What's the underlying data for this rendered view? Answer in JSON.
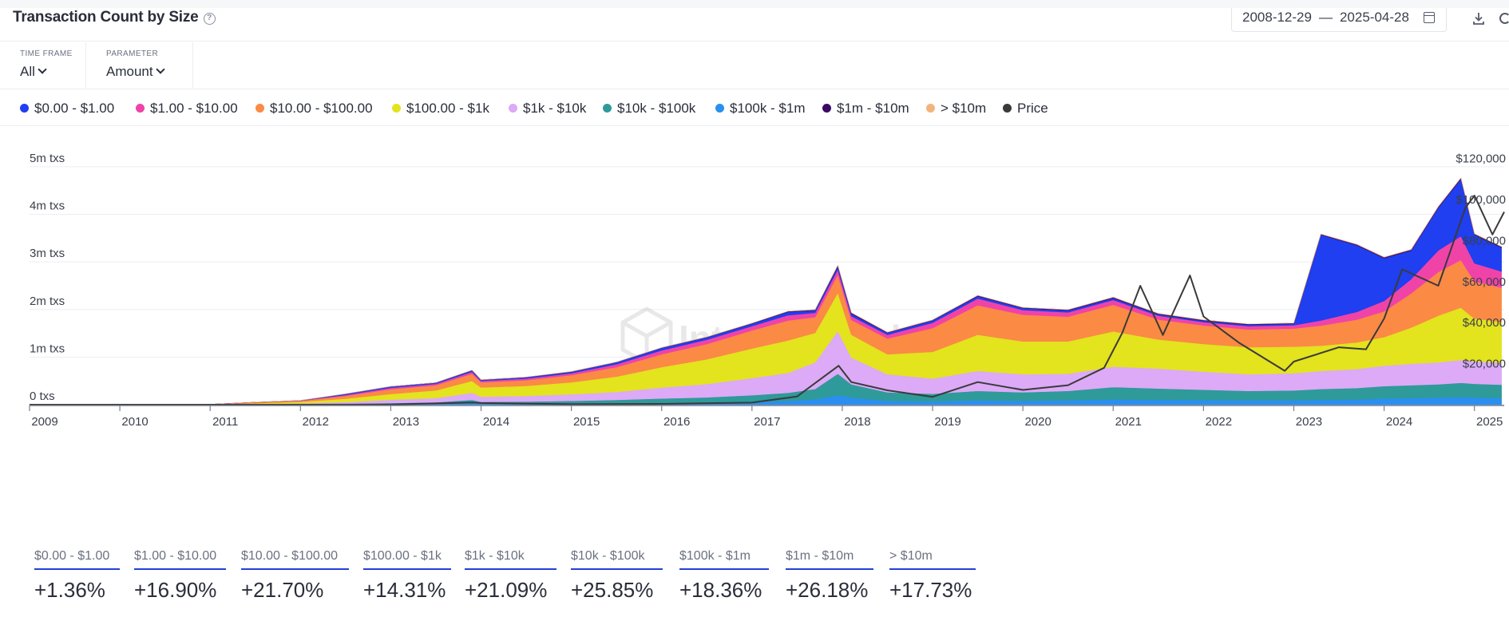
{
  "header": {
    "title": "Transaction Count by Size",
    "date_start": "2008-12-29",
    "date_end": "2025-04-28"
  },
  "filters": [
    {
      "label": "TIME FRAME",
      "value": "All"
    },
    {
      "label": "PARAMETER",
      "value": "Amount"
    }
  ],
  "legend": [
    {
      "label": "$0.00 - $1.00",
      "color": "#1f3ff0"
    },
    {
      "label": "$1.00 - $10.00",
      "color": "#f043a8"
    },
    {
      "label": "$10.00 - $100.00",
      "color": "#fb8a45"
    },
    {
      "label": "$100.00 - $1k",
      "color": "#e3e31e"
    },
    {
      "label": "$1k - $10k",
      "color": "#dcaaf7"
    },
    {
      "label": "$10k - $100k",
      "color": "#2f9a9a"
    },
    {
      "label": "$100k - $1m",
      "color": "#2a8ff0"
    },
    {
      "label": "$1m - $10m",
      "color": "#3b0a66"
    },
    {
      "label": "> $10m",
      "color": "#f2b47a"
    },
    {
      "label": "Price",
      "color": "#3a3a3a"
    }
  ],
  "watermark": "IntoTheBlock",
  "chart_data": {
    "type": "area",
    "stacked": true,
    "x": [
      2009,
      2010,
      2011,
      2011.5,
      2012,
      2012.5,
      2013,
      2013.5,
      2013.9,
      2014,
      2014.5,
      2015,
      2015.5,
      2016,
      2016.5,
      2017,
      2017.4,
      2017.7,
      2017.95,
      2018.1,
      2018.5,
      2019,
      2019.5,
      2020,
      2020.5,
      2021,
      2021.5,
      2022,
      2022.5,
      2023,
      2023.3,
      2023.7,
      2024,
      2024.3,
      2024.6,
      2024.85,
      2025,
      2025.3
    ],
    "xlim": [
      2009,
      2025.33
    ],
    "ylim": [
      0,
      5300000
    ],
    "y_ticks": [
      "0 txs",
      "1m txs",
      "2m txs",
      "3m txs",
      "4m txs",
      "5m txs"
    ],
    "y_tick_values": [
      0,
      1000000,
      2000000,
      3000000,
      4000000,
      5000000
    ],
    "x_ticks": [
      "2009",
      "2010",
      "2011",
      "2012",
      "2013",
      "2014",
      "2015",
      "2016",
      "2017",
      "2018",
      "2019",
      "2020",
      "2021",
      "2022",
      "2023",
      "2024",
      "2025"
    ],
    "x_tick_values": [
      2009,
      2010,
      2011,
      2012,
      2013,
      2014,
      2015,
      2016,
      2017,
      2018,
      2019,
      2020,
      2021,
      2022,
      2023,
      2024,
      2025
    ],
    "y2_ticks": [
      "$20,000",
      "$40,000",
      "$60,000",
      "$80,000",
      "$100,000",
      "$120,000"
    ],
    "y2_tick_values": [
      20000,
      40000,
      60000,
      80000,
      100000,
      120000
    ],
    "y2lim": [
      0,
      123000
    ],
    "series": [
      {
        "name": "$100k - $1m",
        "color": "#2a8ff0",
        "values": [
          0,
          0,
          0,
          0,
          2000,
          5000,
          10000,
          15000,
          40000,
          20000,
          20000,
          25000,
          30000,
          40000,
          45000,
          60000,
          80000,
          110000,
          200000,
          150000,
          80000,
          70000,
          90000,
          80000,
          90000,
          110000,
          100000,
          95000,
          90000,
          90000,
          100000,
          110000,
          130000,
          140000,
          150000,
          160000,
          150000,
          140000
        ]
      },
      {
        "name": "$10k - $100k",
        "color": "#2f9a9a",
        "values": [
          0,
          0,
          0,
          2000,
          8000,
          15000,
          25000,
          35000,
          60000,
          40000,
          45000,
          55000,
          70000,
          90000,
          110000,
          140000,
          170000,
          220000,
          450000,
          280000,
          180000,
          160000,
          200000,
          180000,
          200000,
          260000,
          240000,
          220000,
          200000,
          210000,
          230000,
          240000,
          260000,
          270000,
          280000,
          300000,
          290000,
          280000
        ]
      },
      {
        "name": "$1k - $10k",
        "color": "#dcaaf7",
        "values": [
          0,
          0,
          2000,
          10000,
          20000,
          35000,
          70000,
          90000,
          150000,
          110000,
          120000,
          140000,
          170000,
          230000,
          280000,
          360000,
          420000,
          560000,
          900000,
          560000,
          380000,
          320000,
          420000,
          380000,
          360000,
          430000,
          420000,
          380000,
          350000,
          360000,
          380000,
          400000,
          430000,
          450000,
          460000,
          480000,
          470000,
          460000
        ]
      },
      {
        "name": "$100.00 - $1k",
        "color": "#e3e31e",
        "values": [
          0,
          0,
          3000,
          20000,
          30000,
          70000,
          120000,
          160000,
          250000,
          190000,
          210000,
          250000,
          320000,
          430000,
          520000,
          620000,
          680000,
          620000,
          800000,
          480000,
          420000,
          560000,
          760000,
          690000,
          680000,
          740000,
          610000,
          580000,
          570000,
          560000,
          530000,
          560000,
          600000,
          760000,
          980000,
          1100000,
          900000,
          860000
        ]
      },
      {
        "name": "$10.00 - $100.00",
        "color": "#fb8a45",
        "values": [
          0,
          0,
          2000,
          15000,
          20000,
          60000,
          100000,
          110000,
          150000,
          110000,
          120000,
          150000,
          200000,
          270000,
          320000,
          380000,
          420000,
          330000,
          380000,
          310000,
          330000,
          500000,
          620000,
          560000,
          520000,
          560000,
          420000,
          390000,
          370000,
          380000,
          420000,
          480000,
          540000,
          720000,
          920000,
          1000000,
          780000,
          720000
        ]
      },
      {
        "name": "$1.00 - $10.00",
        "color": "#f043a8",
        "values": [
          0,
          0,
          1000,
          3000,
          5000,
          20000,
          30000,
          30000,
          40000,
          30000,
          35000,
          40000,
          60000,
          80000,
          90000,
          90000,
          110000,
          90000,
          110000,
          80000,
          80000,
          110000,
          140000,
          100000,
          90000,
          100000,
          80000,
          70000,
          70000,
          70000,
          110000,
          160000,
          220000,
          300000,
          450000,
          500000,
          380000,
          340000
        ]
      },
      {
        "name": "$0.00 - $1.00",
        "color": "#1f3ff0",
        "values": [
          0,
          0,
          500,
          2000,
          3000,
          20000,
          25000,
          20000,
          30000,
          20000,
          25000,
          30000,
          40000,
          50000,
          50000,
          50000,
          70000,
          50000,
          60000,
          50000,
          40000,
          50000,
          50000,
          40000,
          40000,
          40000,
          30000,
          30000,
          30000,
          30000,
          1800000,
          1400000,
          900000,
          600000,
          900000,
          1200000,
          600000,
          500000
        ]
      },
      {
        "name": "$1m - $10m",
        "color": "#3b0a66",
        "values": [
          0,
          0,
          0,
          0,
          0,
          1000,
          2000,
          3000,
          5000,
          4000,
          4000,
          5000,
          6000,
          7000,
          8000,
          10000,
          12000,
          15000,
          25000,
          20000,
          12000,
          10000,
          14000,
          12000,
          14000,
          18000,
          16000,
          15000,
          14000,
          14000,
          15000,
          16000,
          18000,
          19000,
          20000,
          21000,
          20000,
          19000
        ]
      },
      {
        "name": "> $10m",
        "color": "#f2b47a",
        "values": [
          0,
          0,
          0,
          0,
          0,
          0,
          0,
          0,
          500,
          300,
          300,
          400,
          500,
          600,
          700,
          900,
          1000,
          1200,
          2000,
          1500,
          1000,
          900,
          1100,
          1000,
          1100,
          1400,
          1300,
          1200,
          1100,
          1100,
          1200,
          1300,
          1500,
          1600,
          1700,
          1800,
          1700,
          1600
        ]
      }
    ],
    "price": {
      "name": "Price",
      "color": "#3a3a3a",
      "x": [
        2009,
        2011,
        2012,
        2013,
        2013.9,
        2014,
        2015,
        2016,
        2017,
        2017.5,
        2017.96,
        2018.1,
        2018.5,
        2019,
        2019.5,
        2020,
        2020.5,
        2020.9,
        2021.1,
        2021.3,
        2021.55,
        2021.85,
        2022,
        2022.4,
        2022.9,
        2023,
        2023.5,
        2023.8,
        2024,
        2024.2,
        2024.6,
        2024.9,
        2025,
        2025.2,
        2025.33
      ],
      "values": [
        0,
        1,
        5,
        100,
        1100,
        800,
        250,
        400,
        1000,
        4000,
        19000,
        11000,
        7000,
        3800,
        11000,
        7200,
        9500,
        18000,
        35000,
        58000,
        34000,
        63000,
        43000,
        30000,
        16500,
        21000,
        28000,
        27000,
        42000,
        66000,
        58000,
        96000,
        102000,
        83000,
        94000
      ]
    }
  },
  "stats": [
    {
      "label": "$0.00 - $1.00",
      "value": "+1.36%"
    },
    {
      "label": "$1.00 - $10.00",
      "value": "+16.90%"
    },
    {
      "label": "$10.00 - $100.00",
      "value": "+21.70%"
    },
    {
      "label": "$100.00 - $1k",
      "value": "+14.31%"
    },
    {
      "label": "$1k - $10k",
      "value": "+21.09%"
    },
    {
      "label": "$10k - $100k",
      "value": "+25.85%"
    },
    {
      "label": "$100k - $1m",
      "value": "+18.36%"
    },
    {
      "label": "$1m - $10m",
      "value": "+26.18%"
    },
    {
      "label": "> $10m",
      "value": "+17.73%"
    }
  ]
}
